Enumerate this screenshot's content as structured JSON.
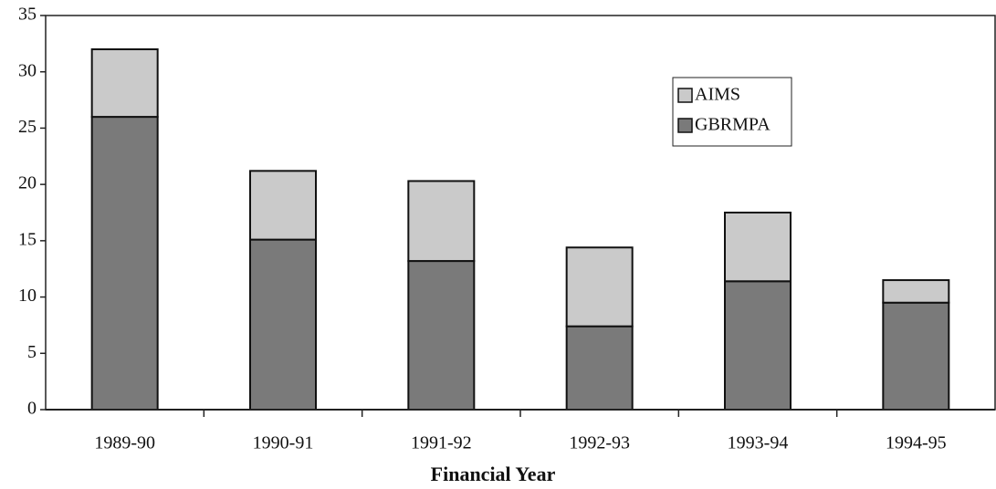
{
  "chart_data": {
    "type": "stacked_bar",
    "x_label": "Financial Year",
    "categories": [
      "1989-90",
      "1990-91",
      "1991-92",
      "1992-93",
      "1993-94",
      "1994-95"
    ],
    "series": [
      {
        "name": "GBRMPA",
        "color": "#7a7a7a",
        "values": [
          26,
          15.1,
          13.2,
          7.4,
          11.4,
          9.5
        ]
      },
      {
        "name": "AIMS",
        "color": "#cacaca",
        "values": [
          6,
          6.1,
          7.1,
          7.0,
          6.1,
          2.0
        ]
      }
    ],
    "ylim": [
      0,
      35
    ],
    "yticks": [
      0,
      5,
      10,
      15,
      20,
      25,
      30,
      35
    ],
    "legend": "upper-right"
  }
}
